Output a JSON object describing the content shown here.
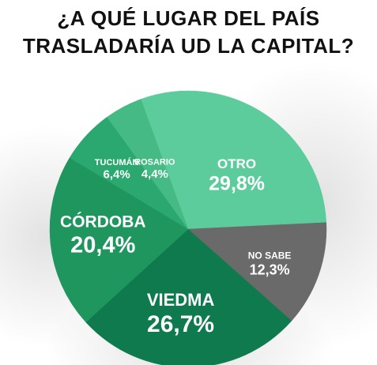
{
  "title_lines": [
    "¿A QUÉ LUGAR DEL PAÍS",
    "TRASLADARÍA UD LA CAPITAL?"
  ],
  "chart_data": {
    "type": "pie",
    "title": "¿A QUÉ LUGAR DEL PAÍS TRASLADARÍA UD LA CAPITAL?",
    "slices": [
      {
        "label": "OTRO",
        "value": 29.8,
        "display": "29,8%",
        "color": "#5ccc9c"
      },
      {
        "label": "NO SABE",
        "value": 12.3,
        "display": "12,3%",
        "color": "#6a6a6a"
      },
      {
        "label": "VIEDMA",
        "value": 26.7,
        "display": "26,7%",
        "color": "#107a4f"
      },
      {
        "label": "CÓRDOBA",
        "value": 20.4,
        "display": "20,4%",
        "color": "#20965f"
      },
      {
        "label": "TUCUMÁN",
        "value": 6.4,
        "display": "6,4%",
        "color": "#2aa870"
      },
      {
        "label": "ROSARIO",
        "value": 4.4,
        "display": "4,4%",
        "color": "#45ba85"
      }
    ]
  }
}
